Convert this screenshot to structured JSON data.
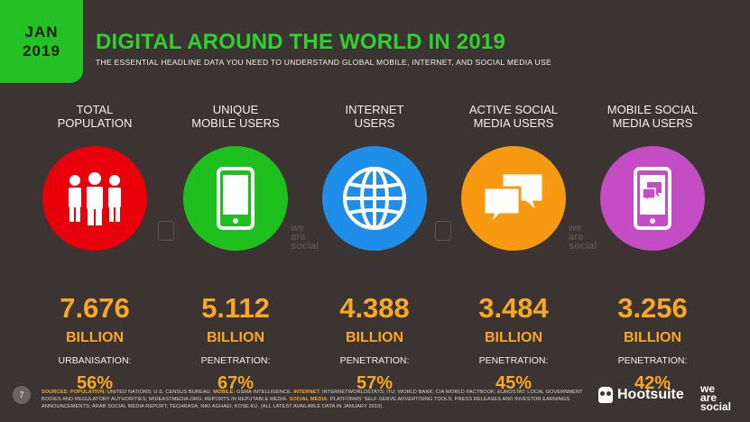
{
  "badge": {
    "month": "JAN",
    "year": "2019"
  },
  "title": "DIGITAL AROUND THE WORLD IN 2019",
  "subtitle": "THE ESSENTIAL HEADLINE DATA YOU NEED TO UNDERSTAND GLOBAL MOBILE, INTERNET, AND SOCIAL MEDIA USE",
  "columns": [
    {
      "label1": "TOTAL",
      "label2": "POPULATION",
      "value": "7.676",
      "unit": "BILLION",
      "sublabel": "URBANISATION:",
      "pct": "56%",
      "color": "#e8000b",
      "icon": "people-icon"
    },
    {
      "label1": "UNIQUE",
      "label2": "MOBILE USERS",
      "value": "5.112",
      "unit": "BILLION",
      "sublabel": "PENETRATION:",
      "pct": "67%",
      "color": "#1ec01e",
      "icon": "mobile-phone-icon"
    },
    {
      "label1": "INTERNET",
      "label2": "USERS",
      "value": "4.388",
      "unit": "BILLION",
      "sublabel": "PENETRATION:",
      "pct": "57%",
      "color": "#1f8ee8",
      "icon": "globe-icon"
    },
    {
      "label1": "ACTIVE SOCIAL",
      "label2": "MEDIA USERS",
      "value": "3.484",
      "unit": "BILLION",
      "sublabel": "PENETRATION:",
      "pct": "45%",
      "color": "#f79a12",
      "icon": "chat-bubbles-icon"
    },
    {
      "label1": "MOBILE SOCIAL",
      "label2": "MEDIA USERS",
      "value": "3.256",
      "unit": "BILLION",
      "sublabel": "PENETRATION:",
      "pct": "42%",
      "color": "#c44cc4",
      "icon": "mobile-chat-icon"
    }
  ],
  "watermark": {
    "line1": "we",
    "line2": "are",
    "line3": "social"
  },
  "page_number": "7",
  "sources": {
    "label": "SOURCES:",
    "population_label": "POPULATION:",
    "population_text": "UNITED NATIONS; U.S. CENSUS BUREAU.",
    "mobile_label": "MOBILE:",
    "mobile_text": "GSMA INTELLIGENCE.",
    "internet_label": "INTERNET:",
    "internet_text": "INTERNETWORLDSTATS; ITU; WORLD BANK; CIA WORLD FACTBOOK; EUROSTAT; LOCAL GOVERNMENT BODIES AND REGULATORY AUTHORITIES; MIDEASTMEDIA.ORG; REPORTS IN REPUTABLE MEDIA.",
    "social_label": "SOCIAL MEDIA:",
    "social_text": "PLATFORMS' SELF-SERVE ADVERTISING TOOLS; PRESS RELEASES AND INVESTOR EARNINGS ANNOUNCEMENTS; ARAB SOCIAL MEDIA REPORT; TECHRASA; NIKI AGHAEI; KOSE.KU. (ALL LATEST AVAILABLE DATA IN JANUARY 2019)."
  },
  "logos": {
    "hootsuite": "Hootsuite",
    "was1": "we",
    "was2": "are",
    "was3": "social"
  }
}
